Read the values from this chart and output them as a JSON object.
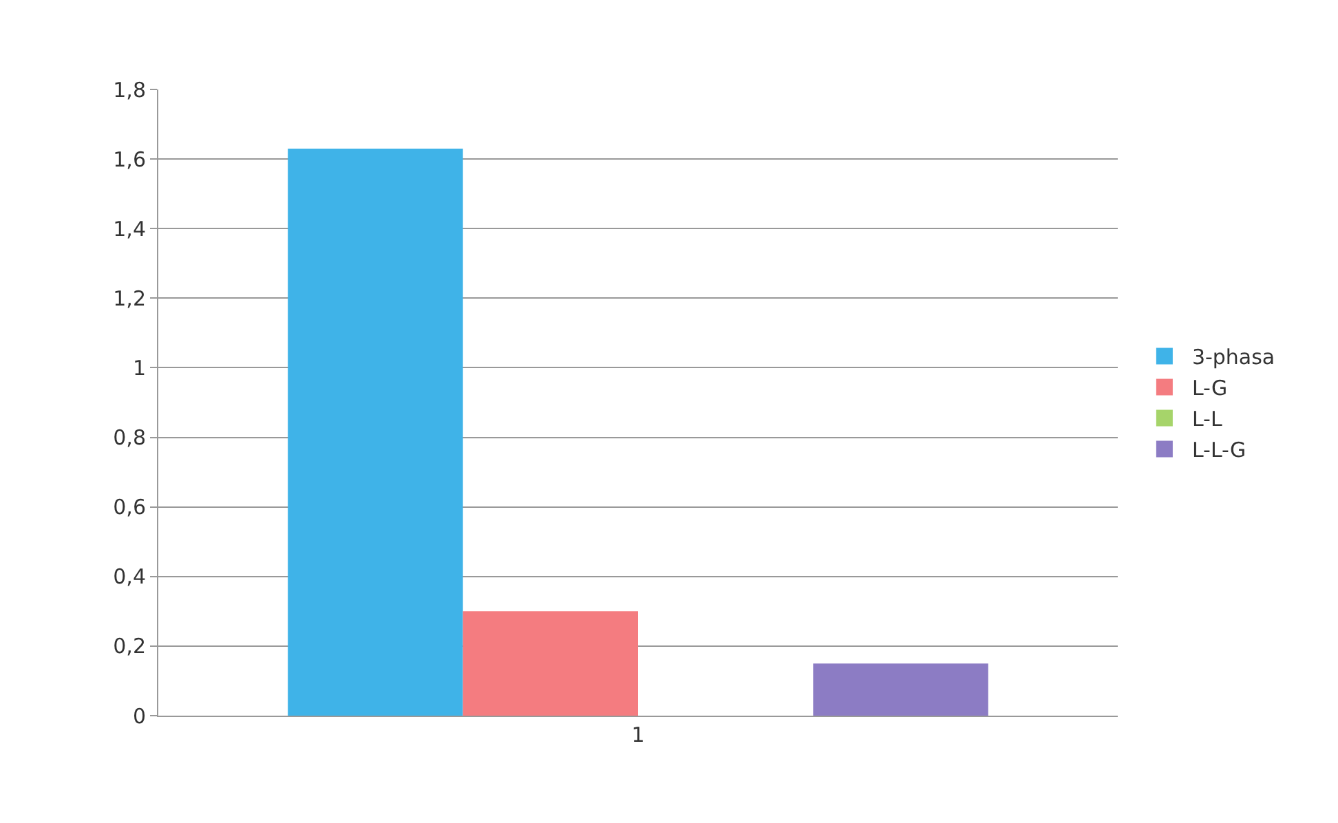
{
  "chart_data": {
    "type": "bar",
    "categories": [
      "1"
    ],
    "series": [
      {
        "name": "3-phasa",
        "color": "#3fb3e8",
        "values": [
          1.63
        ]
      },
      {
        "name": "L-G",
        "color": "#f47c80",
        "values": [
          0.3
        ]
      },
      {
        "name": "L-L",
        "color": "#a6d46a",
        "values": [
          0
        ]
      },
      {
        "name": "L-L-G",
        "color": "#8c7cc4",
        "values": [
          0.15
        ]
      }
    ],
    "ylim": [
      0,
      1.8
    ],
    "yticks": [
      0,
      {
        "value": 0.2,
        "label": "0,2"
      },
      {
        "value": 0.4,
        "label": "0,4"
      },
      {
        "value": 0.6,
        "label": "0,6"
      },
      {
        "value": 0.8,
        "label": "0,8"
      },
      1,
      {
        "value": 1.2,
        "label": "1,2"
      },
      {
        "value": 1.4,
        "label": "1,4"
      },
      {
        "value": 1.6,
        "label": "1,6"
      },
      {
        "value": 1.8,
        "label": "1,8"
      }
    ],
    "grid": "y",
    "legend": "right"
  }
}
